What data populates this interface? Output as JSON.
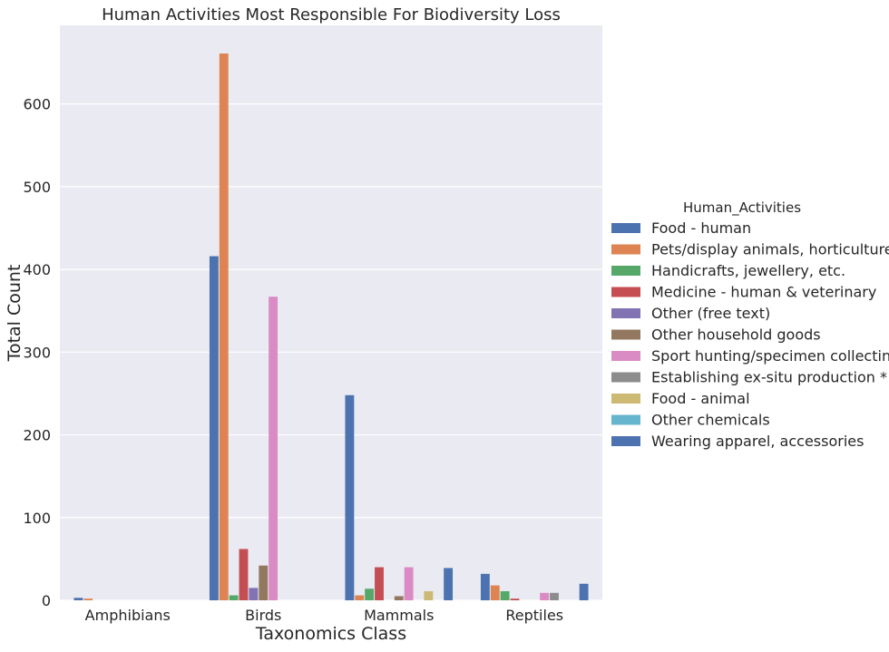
{
  "chart_data": {
    "type": "bar",
    "title": "Human Activities Most Responsible For Biodiversity Loss",
    "xlabel": "Taxonomics Class",
    "ylabel": "Total Count",
    "ylim": [
      0,
      695
    ],
    "yticks": [
      0,
      100,
      200,
      300,
      400,
      500,
      600
    ],
    "grid": true,
    "legend_title": "Human_Activities",
    "legend_position": "right",
    "categories": [
      "Amphibians",
      "Birds",
      "Mammals",
      "Reptiles"
    ],
    "series": [
      {
        "name": "Food - human",
        "color": "#4c72b0",
        "values": [
          3,
          416,
          248,
          32
        ]
      },
      {
        "name": "Pets/display animals, horticulture",
        "color": "#dd8452",
        "values": [
          2,
          661,
          6,
          18
        ]
      },
      {
        "name": "Handicrafts, jewellery, etc.",
        "color": "#55a868",
        "values": [
          0,
          6,
          14,
          11
        ]
      },
      {
        "name": "Medicine - human & veterinary",
        "color": "#c44e52",
        "values": [
          0,
          62,
          40,
          2
        ]
      },
      {
        "name": "Other (free text)",
        "color": "#8172b3",
        "values": [
          0,
          15,
          0,
          0
        ]
      },
      {
        "name": "Other household goods",
        "color": "#937860",
        "values": [
          0,
          42,
          5,
          0
        ]
      },
      {
        "name": "Sport hunting/specimen collecting",
        "color": "#da8bc3",
        "values": [
          0,
          367,
          40,
          9
        ]
      },
      {
        "name": "Establishing ex-situ production *",
        "color": "#8c8c8c",
        "values": [
          0,
          0,
          0,
          9
        ]
      },
      {
        "name": "Food - animal",
        "color": "#ccb974",
        "values": [
          0,
          0,
          11,
          0
        ]
      },
      {
        "name": "Other chemicals",
        "color": "#64b5cd",
        "values": [
          0,
          0,
          0,
          0
        ]
      },
      {
        "name": "Wearing apparel, accessories",
        "color": "#4c72b0",
        "values": [
          0,
          0,
          39,
          20
        ]
      }
    ]
  }
}
